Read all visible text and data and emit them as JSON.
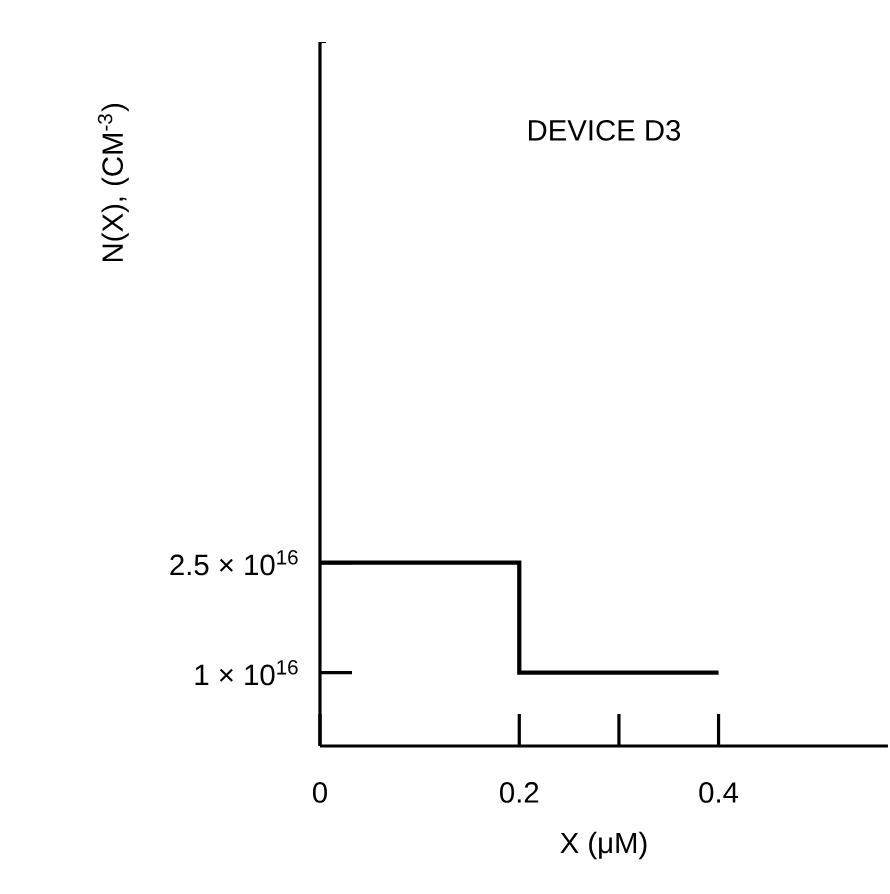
{
  "chart_data": {
    "type": "step",
    "title": "DEVICE D3",
    "xlabel": "X (μM)",
    "ylabel": "N(X), (CM$^{-3}$)",
    "x": [
      0,
      0.2,
      0.4
    ],
    "values": [
      2.5e+16,
      1e+16,
      1e+16
    ],
    "color": "#000000",
    "xlim": [
      0,
      0.57
    ],
    "ylim": [
      0,
      9.6e+16
    ],
    "xticks": [
      0,
      0.2,
      {
        "value": 0.3,
        "label": null
      },
      0.4
    ],
    "yticks": [
      {
        "value": 1e+16,
        "label": "1 × 10$^{16}$"
      },
      {
        "value": 2.5e+16,
        "label": "2.5 × 10$^{16}$"
      }
    ]
  }
}
